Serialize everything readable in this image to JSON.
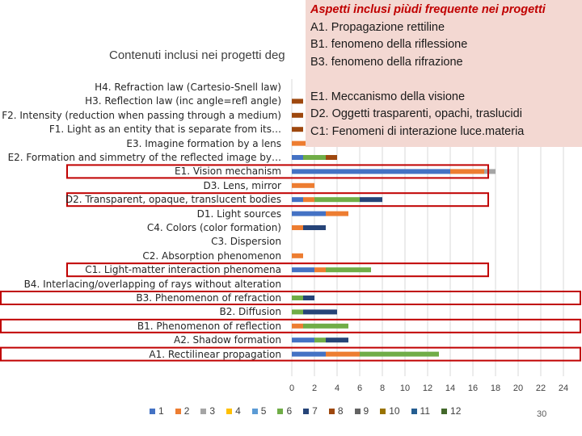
{
  "chart_data": {
    "type": "bar",
    "stacked": true,
    "orientation": "horizontal",
    "title": "Contenuti inclusi nei progetti deg",
    "xlim": [
      0,
      25
    ],
    "x_ticks": [
      "0",
      "2",
      "4",
      "6",
      "8",
      "10",
      "12",
      "14",
      "16",
      "18",
      "20",
      "22",
      "24"
    ],
    "grid": true,
    "legend_position": "bottom",
    "categories": [
      "H4. Refraction law (Cartesio-Snell law)",
      "H3. Reflection law (inc angle=refl angle)",
      "F2. Intensity (reduction when passing through a medium)",
      "F1. Light as an entity that is separate from its…",
      "E3. Imagine formation by a lens",
      "E2. Formation and simmetry of the reflected image by…",
      "E1. Vision mechanism",
      "D3. Lens, mirror",
      "D2. Transparent, opaque, translucent bodies",
      "D1. Light sources",
      "C4. Colors (color formation)",
      "C3. Dispersion",
      "C2. Absorption phenomenon",
      "C1. Light-matter interaction phenomena",
      "B4. Interlacing/overlapping of rays without alteration",
      "B3. Phenomenon of refraction",
      "B2. Diffusion",
      "B1. Phenomenon of reflection",
      "A2. Shadow formation",
      "A1. Rectilinear propagation"
    ],
    "highlighted": [
      "E1. Vision mechanism",
      "D2. Transparent, opaque, translucent bodies",
      "C1. Light-matter interaction phenomena",
      "B3. Phenomenon of refraction",
      "B1. Phenomenon of reflection",
      "A1. Rectilinear propagation"
    ],
    "series": [
      {
        "name": "1",
        "color": "#4472c4",
        "values": [
          0,
          0,
          0,
          0,
          0,
          1,
          14,
          0,
          1,
          3,
          0,
          0,
          0,
          2,
          0,
          0,
          0,
          0,
          2,
          3
        ]
      },
      {
        "name": "2",
        "color": "#ed7d31",
        "values": [
          0,
          0,
          0,
          0,
          2,
          0,
          3,
          2,
          1,
          2,
          1,
          0,
          1,
          1,
          0,
          0,
          0,
          1,
          0,
          3
        ]
      },
      {
        "name": "3",
        "color": "#a5a5a5",
        "values": [
          0,
          0,
          0,
          0,
          0,
          0,
          1,
          0,
          0,
          0,
          0,
          0,
          0,
          0,
          0,
          0,
          0,
          0,
          0,
          0
        ]
      },
      {
        "name": "4",
        "color": "#ffc000",
        "values": [
          0,
          0,
          0,
          0,
          0,
          0,
          0,
          0,
          0,
          0,
          0,
          0,
          0,
          0,
          0,
          0,
          0,
          0,
          0,
          0
        ]
      },
      {
        "name": "5",
        "color": "#5b9bd5",
        "values": [
          0,
          0,
          0,
          0,
          0,
          0,
          0,
          0,
          0,
          0,
          0,
          0,
          0,
          0,
          0,
          0,
          0,
          0,
          0,
          0
        ]
      },
      {
        "name": "6",
        "color": "#70ad47",
        "values": [
          0,
          0,
          0,
          0,
          0,
          2,
          0,
          0,
          4,
          0,
          0,
          0,
          0,
          4,
          0,
          1,
          1,
          4,
          1,
          7
        ]
      },
      {
        "name": "7",
        "color": "#264478",
        "values": [
          0,
          0,
          0,
          0,
          1,
          0,
          0,
          0,
          2,
          0,
          2,
          0,
          0,
          0,
          0,
          1,
          3,
          0,
          2,
          0
        ]
      },
      {
        "name": "8",
        "color": "#9e480e",
        "values": [
          0,
          1,
          1,
          1,
          0,
          1,
          0,
          0,
          0,
          0,
          0,
          0,
          0,
          0,
          0,
          0,
          0,
          0,
          0,
          0
        ]
      },
      {
        "name": "9",
        "color": "#636363",
        "values": [
          0,
          0,
          0,
          0,
          0,
          0,
          0,
          0,
          0,
          0,
          0,
          0,
          0,
          0,
          0,
          0,
          0,
          0,
          0,
          0
        ]
      },
      {
        "name": "10",
        "color": "#997300",
        "values": [
          0,
          0,
          0,
          0,
          0,
          0,
          0,
          0,
          0,
          0,
          0,
          0,
          0,
          0,
          0,
          0,
          0,
          0,
          0,
          0
        ]
      },
      {
        "name": "11",
        "color": "#255e91",
        "values": [
          0,
          0,
          0,
          0,
          0,
          0,
          0,
          0,
          0,
          0,
          0,
          0,
          0,
          0,
          0,
          0,
          0,
          0,
          0,
          0
        ]
      },
      {
        "name": "12",
        "color": "#43682b",
        "values": [
          0,
          0,
          0,
          0,
          0,
          0,
          0,
          0,
          0,
          0,
          0,
          0,
          0,
          0,
          0,
          0,
          0,
          0,
          0,
          0
        ]
      }
    ]
  },
  "note": {
    "heading": "Aspetti inclusi piùdi frequente nei progetti",
    "lines": [
      "A1. Propagazione rettiline",
      "B1. fenomeno della riflessione",
      "B3. fenomeno della rifrazione",
      "",
      "E1. Meccanismo della visione",
      "D2. Oggetti trasparenti, opachi, traslucidi",
      "C1: Fenomeni di interazione luce.materia"
    ]
  },
  "page_number": "30",
  "colors": {
    "highlight_box": "#c00000",
    "note_background": "#f3d8d2",
    "gridline": "#d9d9d9"
  }
}
